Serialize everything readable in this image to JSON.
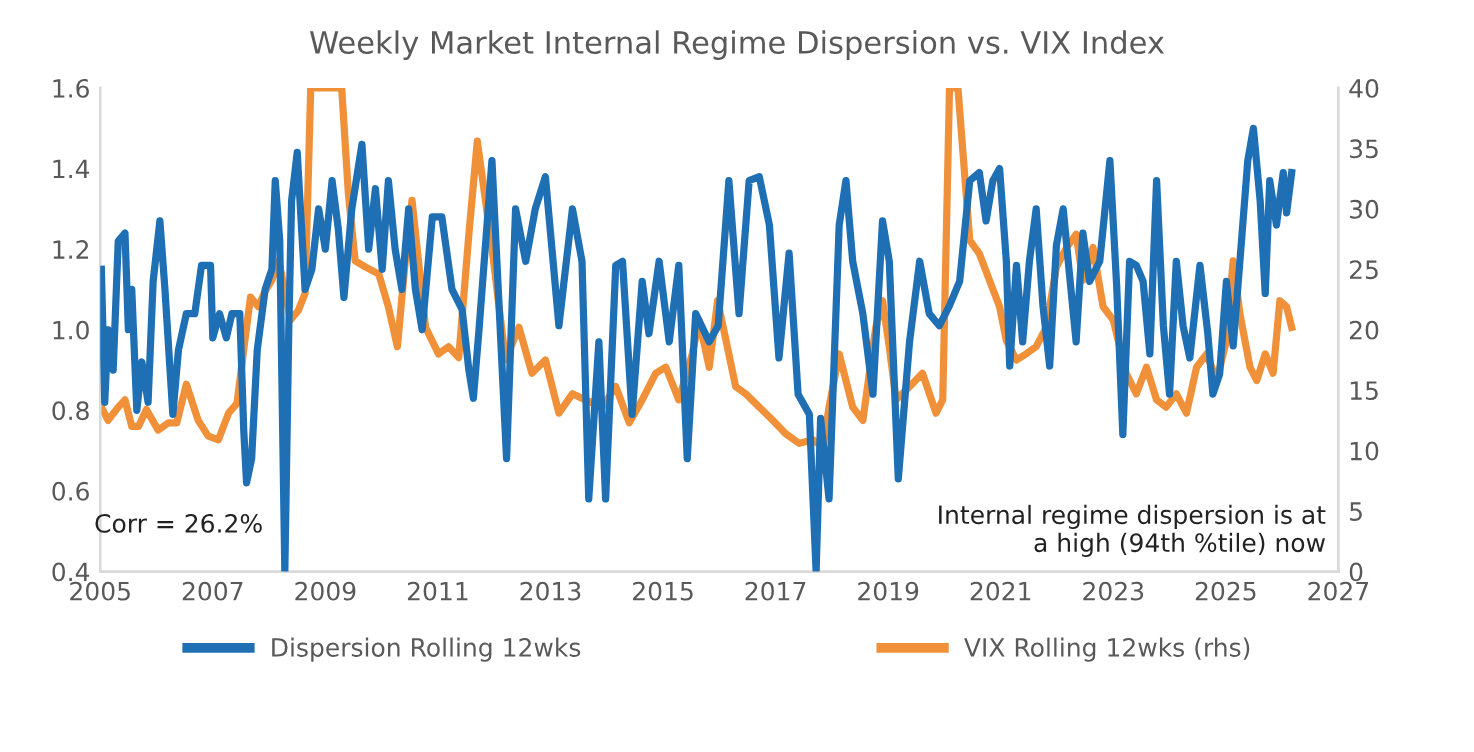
{
  "chart_data": {
    "type": "line",
    "title": "Weekly Market Internal Regime Dispersion vs. VIX Index",
    "xlim": [
      2005,
      2027
    ],
    "xticks": [
      2005,
      2007,
      2009,
      2011,
      2013,
      2015,
      2017,
      2019,
      2021,
      2023,
      2025,
      2027
    ],
    "ylim": [
      0.4,
      1.6
    ],
    "yticks": [
      {
        "value": 0.4,
        "label": "0.4"
      },
      {
        "value": 0.6,
        "label": "0.6"
      },
      {
        "value": 0.8,
        "label": "0.8"
      },
      {
        "value": 1.0,
        "label": "1.0"
      },
      {
        "value": 1.2,
        "label": "1.2"
      },
      {
        "value": 1.4,
        "label": "1.4"
      },
      {
        "value": 1.6,
        "label": "1.6"
      }
    ],
    "y2lim": [
      0,
      40
    ],
    "y2ticks": [
      0,
      5,
      10,
      15,
      20,
      25,
      30,
      35,
      40
    ],
    "grid": false,
    "legend": "bottom",
    "line_style": "solid",
    "marker": "none",
    "annotations": [
      "Corr = 26.2%",
      "Internal regime dispersion is at\na high (94th %tile) now"
    ],
    "series": [
      {
        "name": "Dispersion Rolling 12wks",
        "color": "#1f6fb5",
        "x": [
          2005.02,
          2005.08,
          2005.14,
          2005.23,
          2005.32,
          2005.44,
          2005.5,
          2005.56,
          2005.65,
          2005.74,
          2005.85,
          2005.94,
          2006.06,
          2006.15,
          2006.29,
          2006.39,
          2006.53,
          2006.68,
          2006.8,
          2006.96,
          2007.0,
          2007.12,
          2007.24,
          2007.34,
          2007.48,
          2007.55,
          2007.6,
          2007.69,
          2007.79,
          2007.93,
          2008.05,
          2008.11,
          2008.19,
          2008.28,
          2008.35,
          2008.4,
          2008.5,
          2008.64,
          2008.76,
          2008.88,
          2009.0,
          2009.12,
          2009.23,
          2009.33,
          2009.47,
          2009.65,
          2009.77,
          2009.89,
          2010.01,
          2010.12,
          2010.24,
          2010.36,
          2010.48,
          2010.6,
          2010.72,
          2010.9,
          2011.07,
          2011.25,
          2011.43,
          2011.55,
          2011.63,
          2011.73,
          2011.96,
          2012.22,
          2012.38,
          2012.56,
          2012.73,
          2012.91,
          2013.15,
          2013.39,
          2013.56,
          2013.68,
          2013.86,
          2013.98,
          2014.16,
          2014.28,
          2014.45,
          2014.63,
          2014.75,
          2014.93,
          2015.11,
          2015.28,
          2015.43,
          2015.58,
          2015.82,
          2015.98,
          2016.17,
          2016.35,
          2016.53,
          2016.71,
          2016.89,
          2017.06,
          2017.24,
          2017.4,
          2017.6,
          2017.72,
          2017.8,
          2017.95,
          2018.13,
          2018.25,
          2018.37,
          2018.55,
          2018.73,
          2018.9,
          2019.02,
          2019.18,
          2019.38,
          2019.56,
          2019.73,
          2019.91,
          2020.09,
          2020.27,
          2020.45,
          2020.62,
          2020.74,
          2020.86,
          2020.98,
          2021.1,
          2021.16,
          2021.28,
          2021.39,
          2021.51,
          2021.63,
          2021.75,
          2021.87,
          2021.99,
          2022.11,
          2022.22,
          2022.34,
          2022.46,
          2022.58,
          2022.76,
          2022.94,
          2023.06,
          2023.17,
          2023.29,
          2023.41,
          2023.53,
          2023.65,
          2023.77,
          2023.89,
          2024.0,
          2024.12,
          2024.24,
          2024.36,
          2024.54,
          2024.68,
          2024.77,
          2024.89,
          2025.01,
          2025.13,
          2025.25,
          2025.39,
          2025.49,
          2025.61,
          2025.7,
          2025.78,
          2025.9,
          2026.02,
          2026.08,
          2026.17
        ],
        "values": [
          1.15,
          0.82,
          1.0,
          0.9,
          1.22,
          1.24,
          1.0,
          1.1,
          0.8,
          0.92,
          0.82,
          1.12,
          1.27,
          1.1,
          0.79,
          0.95,
          1.04,
          1.04,
          1.16,
          1.16,
          0.98,
          1.04,
          0.98,
          1.04,
          1.04,
          0.75,
          0.62,
          0.68,
          0.95,
          1.1,
          1.15,
          1.37,
          1.22,
          0.4,
          1.0,
          1.32,
          1.44,
          1.1,
          1.15,
          1.3,
          1.2,
          1.37,
          1.25,
          1.08,
          1.3,
          1.46,
          1.2,
          1.35,
          1.15,
          1.37,
          1.2,
          1.1,
          1.3,
          1.1,
          1.0,
          1.28,
          1.28,
          1.1,
          1.05,
          0.9,
          0.83,
          1.0,
          1.42,
          0.68,
          1.3,
          1.17,
          1.3,
          1.38,
          1.01,
          1.3,
          1.17,
          0.58,
          0.97,
          0.58,
          1.16,
          1.17,
          0.79,
          1.12,
          0.99,
          1.17,
          0.97,
          1.16,
          0.68,
          1.04,
          0.97,
          1.01,
          1.37,
          1.04,
          1.37,
          1.38,
          1.26,
          0.93,
          1.19,
          0.84,
          0.79,
          0.4,
          0.78,
          0.58,
          1.26,
          1.37,
          1.17,
          1.04,
          0.84,
          1.27,
          1.17,
          0.63,
          0.97,
          1.17,
          1.04,
          1.01,
          1.06,
          1.12,
          1.37,
          1.39,
          1.27,
          1.37,
          1.4,
          1.17,
          0.91,
          1.16,
          0.97,
          1.17,
          1.3,
          1.06,
          0.91,
          1.21,
          1.3,
          1.14,
          0.97,
          1.24,
          1.12,
          1.17,
          1.42,
          1.11,
          0.74,
          1.17,
          1.16,
          1.12,
          0.94,
          1.37,
          1.01,
          0.84,
          1.17,
          1.01,
          0.93,
          1.16,
          0.99,
          0.84,
          0.89,
          1.12,
          0.96,
          1.17,
          1.42,
          1.5,
          1.32,
          1.09,
          1.37,
          1.26,
          1.39,
          1.29,
          1.39
        ]
      },
      {
        "name": "VIX Rolling 12wks (rhs)",
        "color": "#f0913a",
        "axis": "y2",
        "x": [
          2005.02,
          2005.14,
          2005.32,
          2005.44,
          2005.56,
          2005.68,
          2005.82,
          2006.03,
          2006.21,
          2006.36,
          2006.53,
          2006.74,
          2006.92,
          2007.1,
          2007.28,
          2007.43,
          2007.57,
          2007.67,
          2007.81,
          2007.93,
          2008.05,
          2008.17,
          2008.29,
          2008.38,
          2008.52,
          2008.64,
          2008.74,
          2009.29,
          2009.41,
          2009.53,
          2009.71,
          2009.95,
          2010.12,
          2010.28,
          2010.42,
          2010.54,
          2010.78,
          2011.01,
          2011.19,
          2011.37,
          2011.55,
          2011.7,
          2011.96,
          2012.2,
          2012.44,
          2012.67,
          2012.91,
          2013.15,
          2013.39,
          2013.62,
          2013.92,
          2014.16,
          2014.4,
          2014.63,
          2014.87,
          2015.05,
          2015.28,
          2015.52,
          2015.64,
          2015.82,
          2015.97,
          2016.12,
          2016.29,
          2016.47,
          2016.71,
          2016.95,
          2017.18,
          2017.42,
          2017.66,
          2017.84,
          2017.95,
          2018.13,
          2018.37,
          2018.55,
          2018.78,
          2018.9,
          2019.02,
          2019.14,
          2019.38,
          2019.61,
          2019.85,
          2019.97,
          2020.09,
          2020.24,
          2020.45,
          2020.62,
          2020.8,
          2020.98,
          2021.1,
          2021.28,
          2021.45,
          2021.63,
          2021.81,
          2021.99,
          2022.17,
          2022.34,
          2022.46,
          2022.64,
          2022.82,
          2023.0,
          2023.23,
          2023.41,
          2023.59,
          2023.77,
          2023.94,
          2024.12,
          2024.3,
          2024.48,
          2024.66,
          2024.84,
          2025.01,
          2025.13,
          2025.25,
          2025.43,
          2025.55,
          2025.7,
          2025.84,
          2025.96,
          2026.08,
          2026.17
        ],
        "values": [
          13.6,
          12.5,
          13.6,
          14.2,
          12.0,
          12.0,
          13.4,
          11.7,
          12.3,
          12.3,
          15.5,
          12.5,
          11.2,
          10.9,
          13.1,
          13.9,
          19.1,
          22.7,
          21.9,
          23.2,
          24.1,
          25.7,
          23.0,
          20.8,
          21.6,
          23.0,
          40,
          40,
          31.2,
          25.7,
          25.2,
          24.6,
          21.9,
          18.6,
          25.7,
          30.7,
          20.2,
          18.0,
          18.6,
          17.7,
          27.9,
          35.6,
          26.8,
          17.5,
          20.2,
          16.4,
          17.5,
          13.1,
          14.7,
          14.2,
          13.6,
          15.3,
          12.3,
          14.2,
          16.4,
          16.9,
          14.2,
          18.0,
          20.8,
          16.9,
          22.4,
          19.1,
          15.3,
          14.7,
          13.6,
          12.5,
          11.4,
          10.6,
          10.9,
          10.3,
          13.6,
          18.0,
          13.6,
          12.5,
          20.2,
          22.4,
          18.6,
          14.2,
          15.3,
          16.4,
          13.1,
          14.2,
          40,
          40,
          27.4,
          26.3,
          24.1,
          21.9,
          19.1,
          17.5,
          18.0,
          18.6,
          20.2,
          25.2,
          26.8,
          27.9,
          24.1,
          26.8,
          21.9,
          20.8,
          16.4,
          14.7,
          16.9,
          14.2,
          13.6,
          14.7,
          13.1,
          16.9,
          18.0,
          15.8,
          19.1,
          25.7,
          21.3,
          16.9,
          15.8,
          18.0,
          16.4,
          22.4,
          21.9,
          20.2
        ]
      }
    ]
  }
}
